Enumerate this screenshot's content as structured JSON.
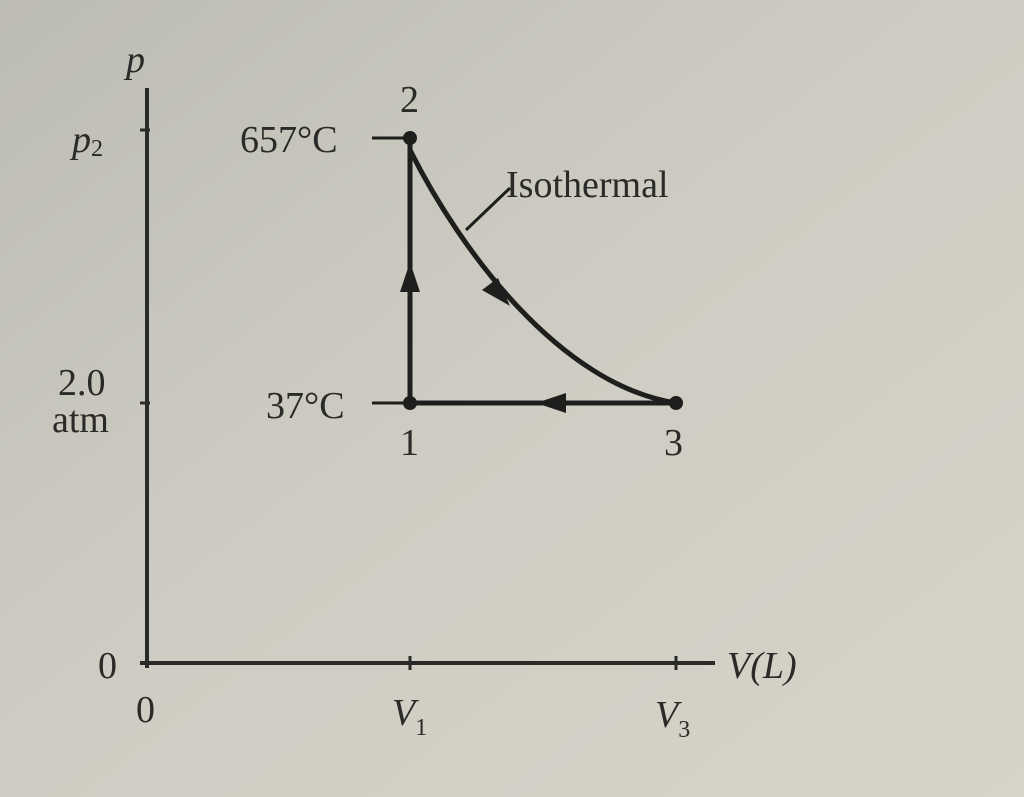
{
  "axes": {
    "y_label": "p",
    "x_label": "V(L)",
    "y_ticks": [
      {
        "main": "p",
        "sub": "2"
      },
      {
        "lines": [
          "2.0",
          "atm"
        ]
      },
      "0"
    ],
    "x_ticks": [
      "0",
      {
        "main": "V",
        "sub": "1"
      },
      {
        "main": "V",
        "sub": "3"
      }
    ]
  },
  "states": [
    {
      "number": "1",
      "temperature": "37°C"
    },
    {
      "number": "2",
      "temperature": "657°C"
    },
    {
      "number": "3"
    }
  ],
  "curve_label": "Isothermal"
}
